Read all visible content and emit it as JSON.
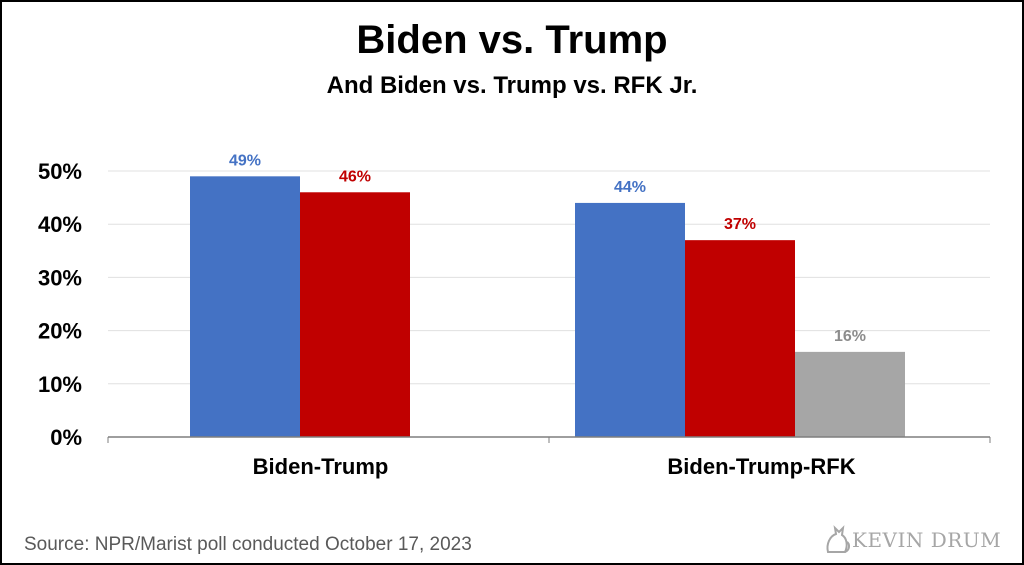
{
  "chart_data": {
    "type": "bar",
    "title": "Biden vs. Trump",
    "subtitle": "And Biden vs. Trump vs. RFK Jr.",
    "ylim": [
      0,
      50
    ],
    "yticks": [
      "0%",
      "10%",
      "20%",
      "30%",
      "40%",
      "50%"
    ],
    "ytick_values": [
      0,
      10,
      20,
      30,
      40,
      50
    ],
    "grid": true,
    "groups": [
      {
        "label": "Biden-Trump",
        "bars": [
          {
            "value": 49,
            "label": "49%",
            "color": "#4472c4"
          },
          {
            "value": 46,
            "label": "46%",
            "color": "#c00000"
          }
        ]
      },
      {
        "label": "Biden-Trump-RFK",
        "bars": [
          {
            "value": 44,
            "label": "44%",
            "color": "#4472c4"
          },
          {
            "value": 37,
            "label": "37%",
            "color": "#c00000"
          },
          {
            "value": 16,
            "label": "16%",
            "color": "#a6a6a6"
          }
        ]
      }
    ]
  },
  "footer": {
    "source": "Source: NPR/Marist poll conducted October 17, 2023",
    "logo_text": "KEVIN DRUM",
    "logo_icon": "cat-silhouette-icon"
  }
}
